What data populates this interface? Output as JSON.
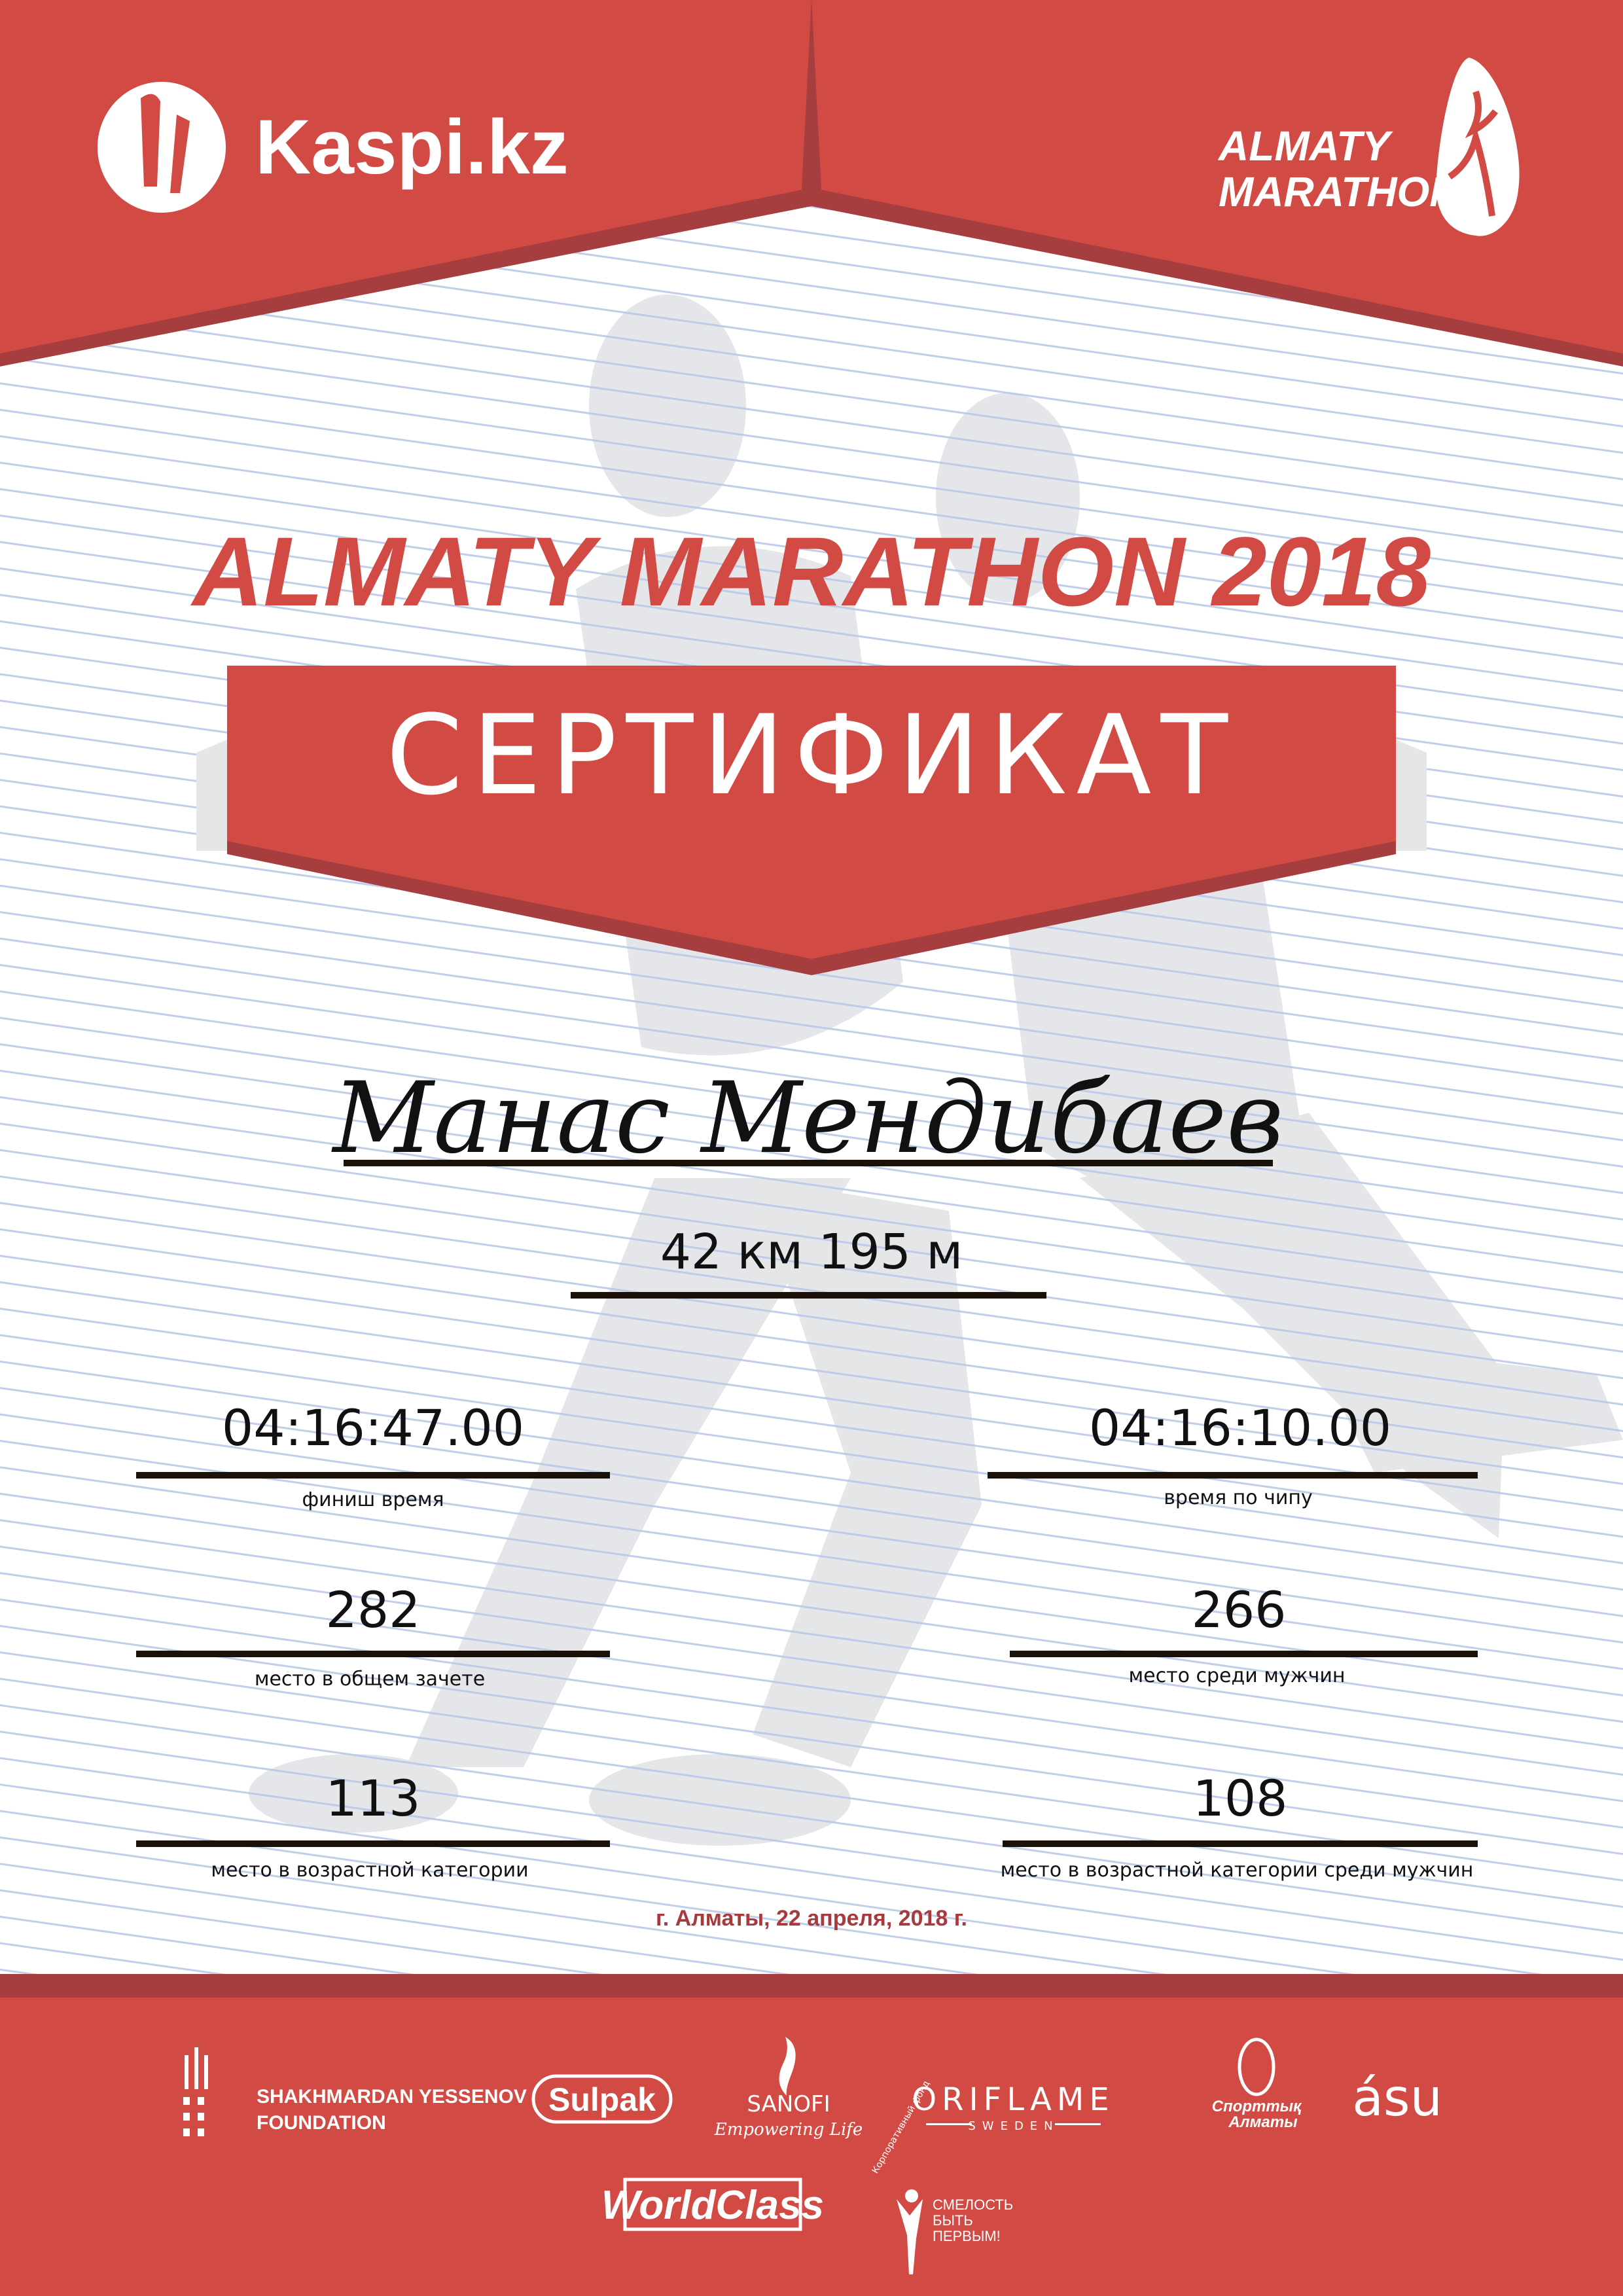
{
  "colors": {
    "brand_red": "#d24a44",
    "dark_red": "#a63d3f",
    "date_red": "#a8393c",
    "line_blue": "#b9c8e8",
    "text": "#111111"
  },
  "header": {
    "left_logo": {
      "text": "Kaspi.kz",
      "icon": "kaspi-people-icon"
    },
    "right_logo": {
      "line1": "ALMATY",
      "line2": "MARATHON",
      "icon": "runner-icon"
    }
  },
  "title": "ALMATY MARATHON 2018",
  "banner": "СЕРТИФИКАТ",
  "participant": {
    "name": "Манас Мендибаев",
    "distance": "42 км 195 м"
  },
  "results": {
    "finish_time": {
      "value": "04:16:47.00",
      "label": "финиш время"
    },
    "chip_time": {
      "value": "04:16:10.00",
      "label": "время по чипу"
    },
    "overall_place": {
      "value": "282",
      "label": "место в общем зачете"
    },
    "gender_place": {
      "value": "266",
      "label": "место среди мужчин"
    },
    "age_place": {
      "value": "113",
      "label": "место в возрастной категории"
    },
    "age_gender_place": {
      "value": "108",
      "label": "место в возрастной категории среди мужчин"
    }
  },
  "date": "г. Алматы, 22 апреля, 2018 г.",
  "sponsors": {
    "yessenov": {
      "line1": "SHAKHMARDAN YESSENOV",
      "line2": "FOUNDATION"
    },
    "sulpak": "Sulpak",
    "sanofi": {
      "name": "SANOFI",
      "tagline": "Empowering Life"
    },
    "oriflame": {
      "name": "ORIFLAME",
      "sub": "SWEDEN"
    },
    "sport_almaty": {
      "line1": "Спорттық",
      "line2": "Алматы"
    },
    "asu": "ásu",
    "worldclass": "WorldClass",
    "courage": {
      "arc": "Корпоративный фонд",
      "line1": "СМЕЛОСТЬ",
      "line2": "БЫТЬ",
      "line3": "ПЕРВЫМ!"
    }
  }
}
